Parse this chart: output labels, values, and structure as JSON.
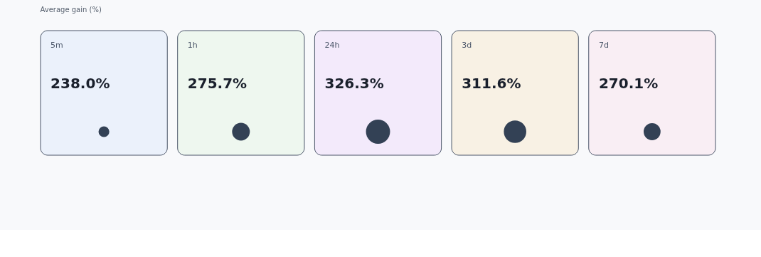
{
  "chart_data": {
    "type": "other",
    "title": "Average gain (%)",
    "categories": [
      "5m",
      "1h",
      "24h",
      "3d",
      "7d"
    ],
    "values": [
      238.0,
      275.7,
      326.3,
      311.6,
      270.1
    ],
    "value_labels": [
      "238.0%",
      "275.7%",
      "326.3%",
      "311.6%",
      "270.1%"
    ],
    "colors": [
      "#ebf1fb",
      "#eef7ef",
      "#f3eafb",
      "#f8f1e4",
      "#f9eef4"
    ],
    "color": "#334155"
  }
}
